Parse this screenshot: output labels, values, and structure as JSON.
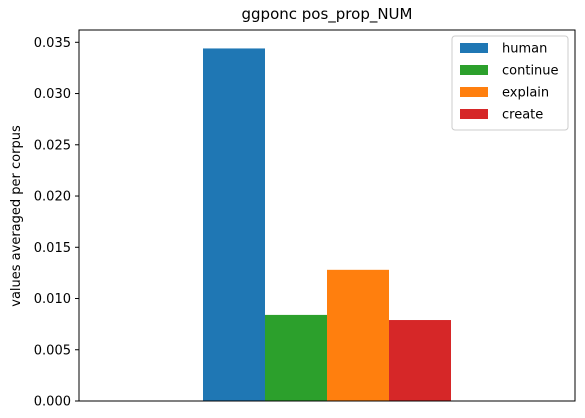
{
  "chart_data": {
    "type": "bar",
    "title": "ggponc pos_prop_NUM",
    "xlabel": "",
    "ylabel": "values averaged per corpus",
    "ylim": [
      0,
      0.0362
    ],
    "yticks": [
      "0.000",
      "0.005",
      "0.010",
      "0.015",
      "0.020",
      "0.025",
      "0.030",
      "0.035"
    ],
    "ytick_values": [
      0,
      0.005,
      0.01,
      0.015,
      0.02,
      0.025,
      0.03,
      0.035
    ],
    "grid": false,
    "legend_position": "top-right",
    "series": [
      {
        "name": "human",
        "value": 0.0344,
        "color": "#1f77b4"
      },
      {
        "name": "continue",
        "value": 0.0084,
        "color": "#2ca02c"
      },
      {
        "name": "explain",
        "value": 0.0128,
        "color": "#ff7f0e"
      },
      {
        "name": "create",
        "value": 0.0079,
        "color": "#d62728"
      }
    ]
  }
}
